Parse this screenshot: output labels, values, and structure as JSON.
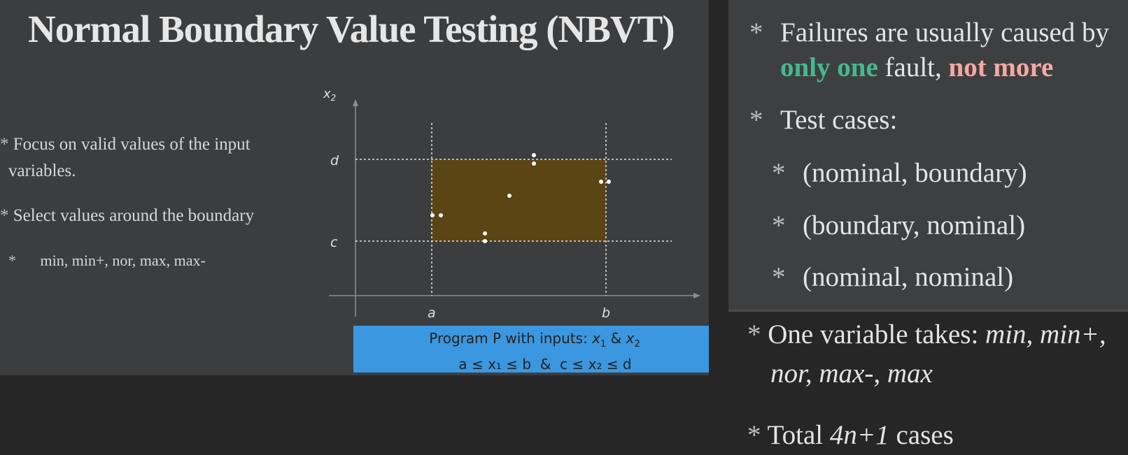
{
  "left_slide": {
    "title": "Normal Boundary Value Testing (NBVT)",
    "bullets": [
      {
        "star": "*",
        "text": "Focus on valid values of the input",
        "text_cont": "variables."
      },
      {
        "star": "*",
        "text": "Select values around the boundary"
      },
      {
        "star": "*",
        "text": "min, min+, nor, max, max-"
      }
    ],
    "plot": {
      "y_axis_label": "x",
      "y_axis_sub": "2",
      "x_ticks": [
        "a",
        "b"
      ],
      "y_ticks": [
        "d",
        "c"
      ],
      "region_color": "#5b4514",
      "caption_line1_prefix": "Program P with inputs: ",
      "caption_x": "x",
      "caption_x1_sub": "1",
      "caption_amp": " & ",
      "caption_x2_sub": "2",
      "caption_line2": "a ≤ x₁ ≤ b  &  c ≤ x₂ ≤ d"
    }
  },
  "right_slide": {
    "bullets": [
      {
        "star": "*",
        "text": "Failures are usually caused by"
      },
      {
        "green": "only one",
        "mid": " fault, ",
        "red": "not more"
      },
      {
        "star": "*",
        "text": "Test cases:"
      },
      {
        "star": "*",
        "text": "(nominal, boundary)"
      },
      {
        "star": "*",
        "text": "(boundary, nominal)"
      },
      {
        "star": "*",
        "text": "(nominal, nominal)"
      }
    ]
  },
  "lower_notes": {
    "line1_prefix": "One variable takes: ",
    "line1_italic": "min, min+,",
    "line2_italic": "nor, max-, max",
    "line3_prefix": "Total ",
    "line3_italic": "4n+1",
    "line3_suffix": " cases",
    "star": "*"
  },
  "colors": {
    "accent_green": "#44b98f",
    "accent_red": "#f4a9a1",
    "caption_bg": "#3b97df"
  }
}
